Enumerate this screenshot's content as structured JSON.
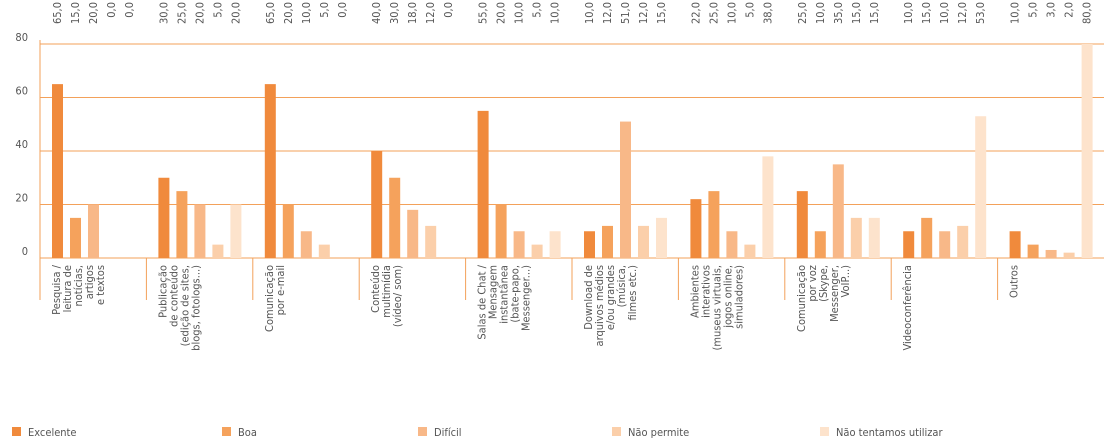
{
  "chart_data": {
    "type": "bar",
    "categories": [
      [
        "Pesquisa /",
        "leitura de",
        "notícias,",
        "artigos",
        "e textos"
      ],
      [
        "Publicação",
        "de conteúdo",
        "(edição de sites,",
        "blogs, fotologs...)"
      ],
      [
        "Comunicação",
        "por e-mail"
      ],
      [
        "Conteúdo",
        "multimídia",
        "(vídeo/ som)"
      ],
      [
        "Salas de Chat /",
        "Mensagem",
        "instantânea",
        "(bate-papo,",
        "Messenger...)"
      ],
      [
        "Download de",
        "arquivos médios",
        "e/ou grandes",
        "(música,",
        "filmes etc.)"
      ],
      [
        "Ambientes",
        "interativos",
        "(museus virtuais,",
        "jogos online,",
        "simuladores)"
      ],
      [
        "Comunicação",
        "por voz",
        "(Skype,",
        "Messenger,",
        "VoIP...)"
      ],
      [
        "Videoconferência"
      ],
      [
        "Outros"
      ]
    ],
    "series": [
      {
        "name": "Excelente",
        "color": "#f08a3c",
        "values": [
          65,
          30,
          65,
          40,
          55,
          10,
          22,
          25,
          10,
          10
        ],
        "value_labels": [
          "65,0",
          "30,0",
          "65,0",
          "40,0",
          "55,0",
          "10,0",
          "22,0",
          "25,0",
          "10,0",
          "10,0"
        ]
      },
      {
        "name": "Boa",
        "color": "#f5a25c",
        "values": [
          15,
          25,
          20,
          30,
          20,
          12,
          25,
          10,
          15,
          5
        ],
        "value_labels": [
          "15,0",
          "25,0",
          "20,0",
          "30,0",
          "20,0",
          "12,0",
          "25,0",
          "10,0",
          "15,0",
          "5,0"
        ]
      },
      {
        "name": "Difícil",
        "color": "#f8b888",
        "values": [
          20,
          20,
          10,
          18,
          10,
          51,
          10,
          35,
          10,
          3
        ],
        "value_labels": [
          "20,0",
          "20,0",
          "10,0",
          "18,0",
          "10,0",
          "51,0",
          "10,0",
          "35,0",
          "10,0",
          "3,0"
        ]
      },
      {
        "name": "Não permite",
        "color": "#fbcfaa",
        "values": [
          0,
          5,
          5,
          12,
          5,
          12,
          5,
          15,
          12,
          2
        ],
        "value_labels": [
          "0,0",
          "5,0",
          "5,0",
          "12,0",
          "5,0",
          "12,0",
          "5,0",
          "15,0",
          "12,0",
          "2,0"
        ]
      },
      {
        "name": "Não tentamos utilizar",
        "color": "#fde3cc",
        "values": [
          0,
          20,
          0,
          0,
          10,
          15,
          38,
          15,
          53,
          80
        ],
        "value_labels": [
          "0,0",
          "20,0",
          "0,0",
          "0,0",
          "10,0",
          "15,0",
          "38,0",
          "15,0",
          "53,0",
          "80,0"
        ]
      }
    ],
    "ylim": [
      0,
      80
    ],
    "yticks": [
      0,
      20,
      40,
      60,
      80
    ],
    "grid": true
  }
}
